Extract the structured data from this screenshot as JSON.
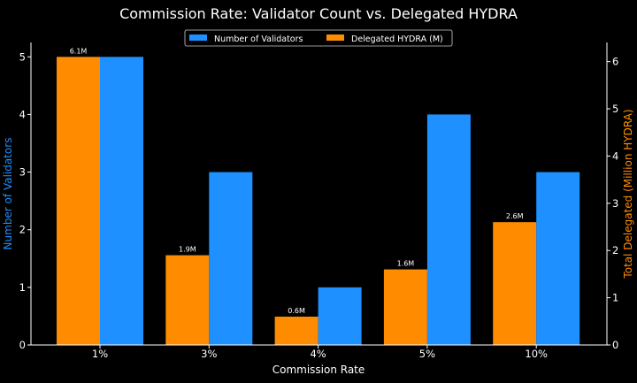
{
  "chart_data": {
    "type": "bar",
    "title": "Commission Rate: Validator Count vs. Delegated HYDRA",
    "xlabel": "Commission Rate",
    "ylabel": "Number of Validators",
    "ylabel_right": "Total Delegated (Million HYDRA)",
    "categories": [
      "1%",
      "3%",
      "4%",
      "5%",
      "10%"
    ],
    "series": [
      {
        "name": "Number of Validators",
        "axis": "left",
        "color": "#1e90ff",
        "values": [
          5,
          3,
          1,
          4,
          3
        ]
      },
      {
        "name": "Delegated HYDRA (M)",
        "axis": "right",
        "color": "#ff8c00",
        "values": [
          6.1,
          1.9,
          0.6,
          1.6,
          2.6
        ],
        "data_labels": [
          "6.1M",
          "1.9M",
          "0.6M",
          "1.6M",
          "2.6M"
        ]
      }
    ],
    "ylim": [
      0,
      5.25
    ],
    "ylim_right": [
      0,
      6.405
    ],
    "yticks": [
      0,
      1,
      2,
      3,
      4,
      5
    ],
    "yticks_right": [
      0,
      1,
      2,
      3,
      4,
      5,
      6
    ],
    "grid": false,
    "legend": "top-center",
    "background": "#000000"
  }
}
